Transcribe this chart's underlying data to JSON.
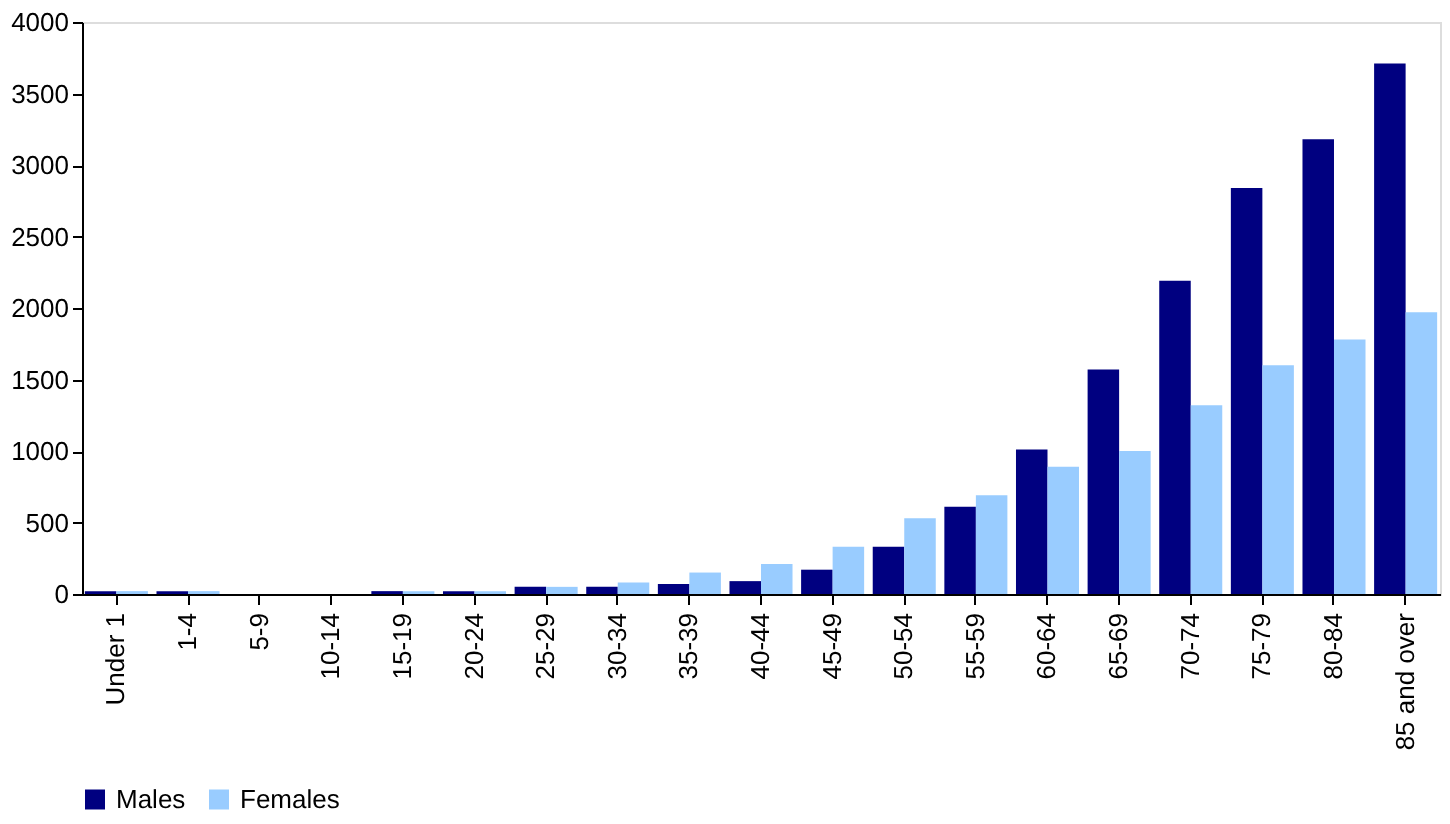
{
  "chart_data": {
    "type": "bar",
    "categories": [
      "Under 1",
      "1-4",
      "5-9",
      "10-14",
      "15-19",
      "20-24",
      "25-29",
      "30-34",
      "35-39",
      "40-44",
      "45-49",
      "50-54",
      "55-59",
      "60-64",
      "65-69",
      "70-74",
      "75-79",
      "80-84",
      "85 and over"
    ],
    "series": [
      {
        "name": "Males",
        "color": "#000080",
        "values": [
          20,
          20,
          0,
          0,
          20,
          20,
          50,
          50,
          70,
          90,
          170,
          330,
          610,
          1010,
          1570,
          2190,
          2840,
          3180,
          3710
        ]
      },
      {
        "name": "Females",
        "color": "#99ccff",
        "values": [
          20,
          20,
          0,
          0,
          20,
          20,
          50,
          80,
          150,
          210,
          330,
          530,
          690,
          890,
          1000,
          1320,
          1600,
          1780,
          1970
        ]
      }
    ],
    "ylim": [
      0,
      4000
    ],
    "yticks": [
      0,
      500,
      1000,
      1500,
      2000,
      2500,
      3000,
      3500,
      4000
    ],
    "grid": false,
    "legend": "bottom"
  }
}
